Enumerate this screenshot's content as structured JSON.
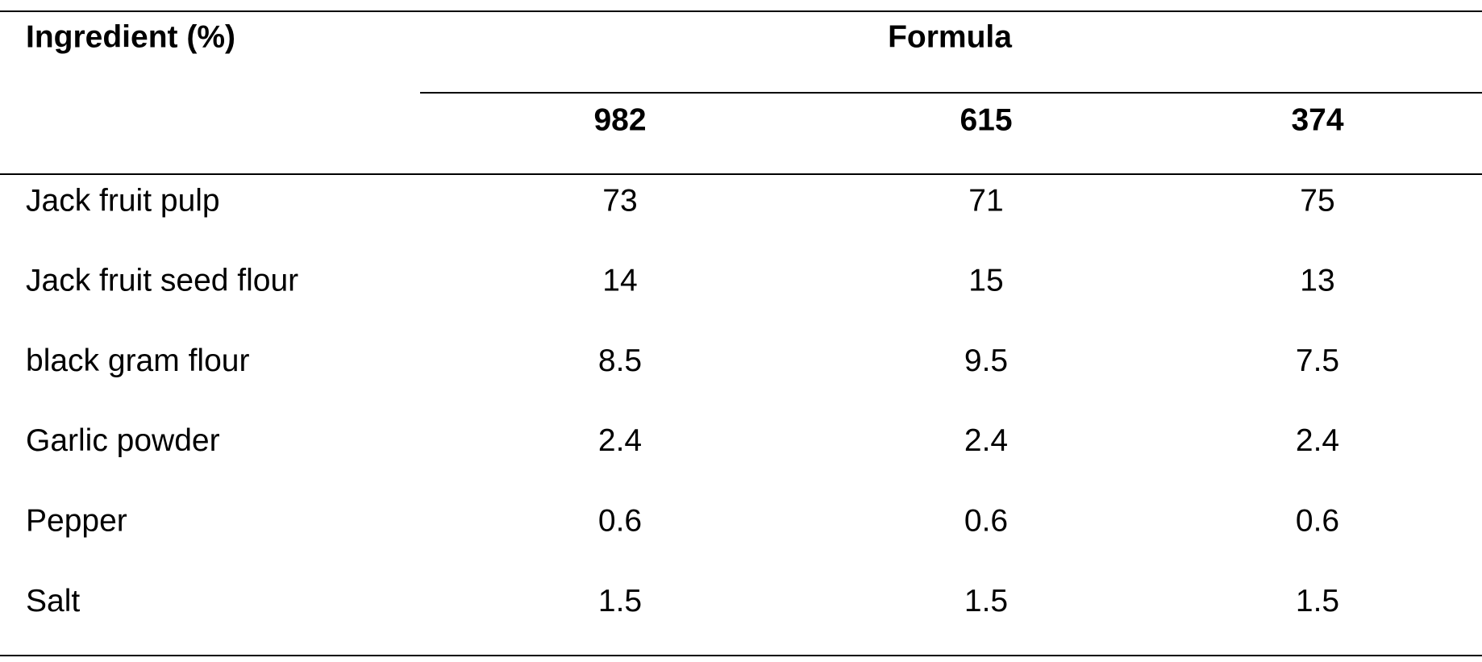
{
  "table": {
    "header": {
      "title": "Ingredient (%)",
      "group": "Formula",
      "columns": [
        "982",
        "615",
        "374"
      ]
    },
    "rows": [
      {
        "label": "Jack fruit pulp",
        "values": [
          73,
          71,
          75
        ]
      },
      {
        "label": "Jack fruit seed flour",
        "values": [
          14,
          15,
          13
        ]
      },
      {
        "label": "black gram flour",
        "values": [
          8.5,
          9.5,
          7.5
        ]
      },
      {
        "label": "Garlic powder",
        "values": [
          2.4,
          2.4,
          2.4
        ]
      },
      {
        "label": "Pepper",
        "values": [
          0.6,
          0.6,
          0.6
        ]
      },
      {
        "label": "Salt",
        "values": [
          1.5,
          1.5,
          1.5
        ]
      }
    ]
  }
}
